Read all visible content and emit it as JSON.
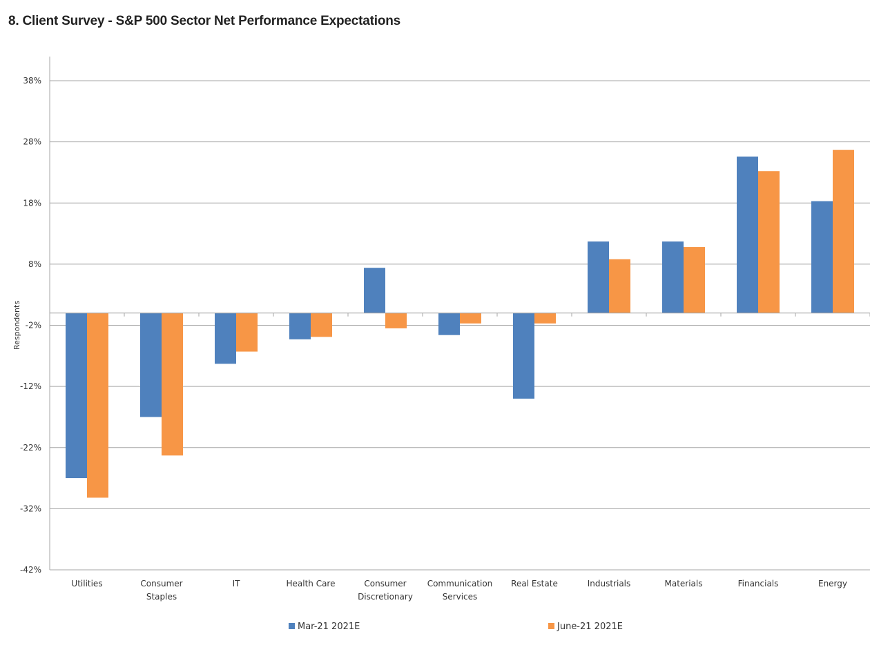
{
  "title": "8. Client Survey - S&P 500 Sector Net Performance Expectations",
  "chart_data": {
    "type": "bar",
    "title": "8. Client Survey - S&P 500 Sector Net Performance Expectations",
    "ylabel": "Respondents",
    "xlabel": "",
    "ylim": [
      -42,
      38
    ],
    "yticks": [
      38,
      28,
      18,
      8,
      -2,
      -12,
      -22,
      -32,
      -42
    ],
    "ytick_labels": [
      "38%",
      "28%",
      "18%",
      "8%",
      "-2%",
      "-12%",
      "-22%",
      "-32%",
      "-42%"
    ],
    "grid": true,
    "legend_position": "bottom",
    "categories": [
      [
        "Utilities"
      ],
      [
        "Consumer",
        "Staples"
      ],
      [
        "IT"
      ],
      [
        "Health Care"
      ],
      [
        "Consumer",
        "Discretionary"
      ],
      [
        "Communication",
        "Services"
      ],
      [
        "Real Estate"
      ],
      [
        "Industrials"
      ],
      [
        "Materials"
      ],
      [
        "Financials"
      ],
      [
        "Energy"
      ]
    ],
    "series": [
      {
        "name": "Mar-21 2021E",
        "color": "#4F81BD",
        "values": [
          -27,
          -17,
          -8.3,
          -4.3,
          7.4,
          -3.6,
          -14,
          11.7,
          11.7,
          25.6,
          18.3
        ]
      },
      {
        "name": "June-21 2021E",
        "color": "#F79646",
        "values": [
          -30.2,
          -23.3,
          -6.3,
          -3.9,
          -2.5,
          -1.7,
          -1.7,
          8.8,
          10.8,
          23.2,
          26.7
        ]
      }
    ]
  }
}
